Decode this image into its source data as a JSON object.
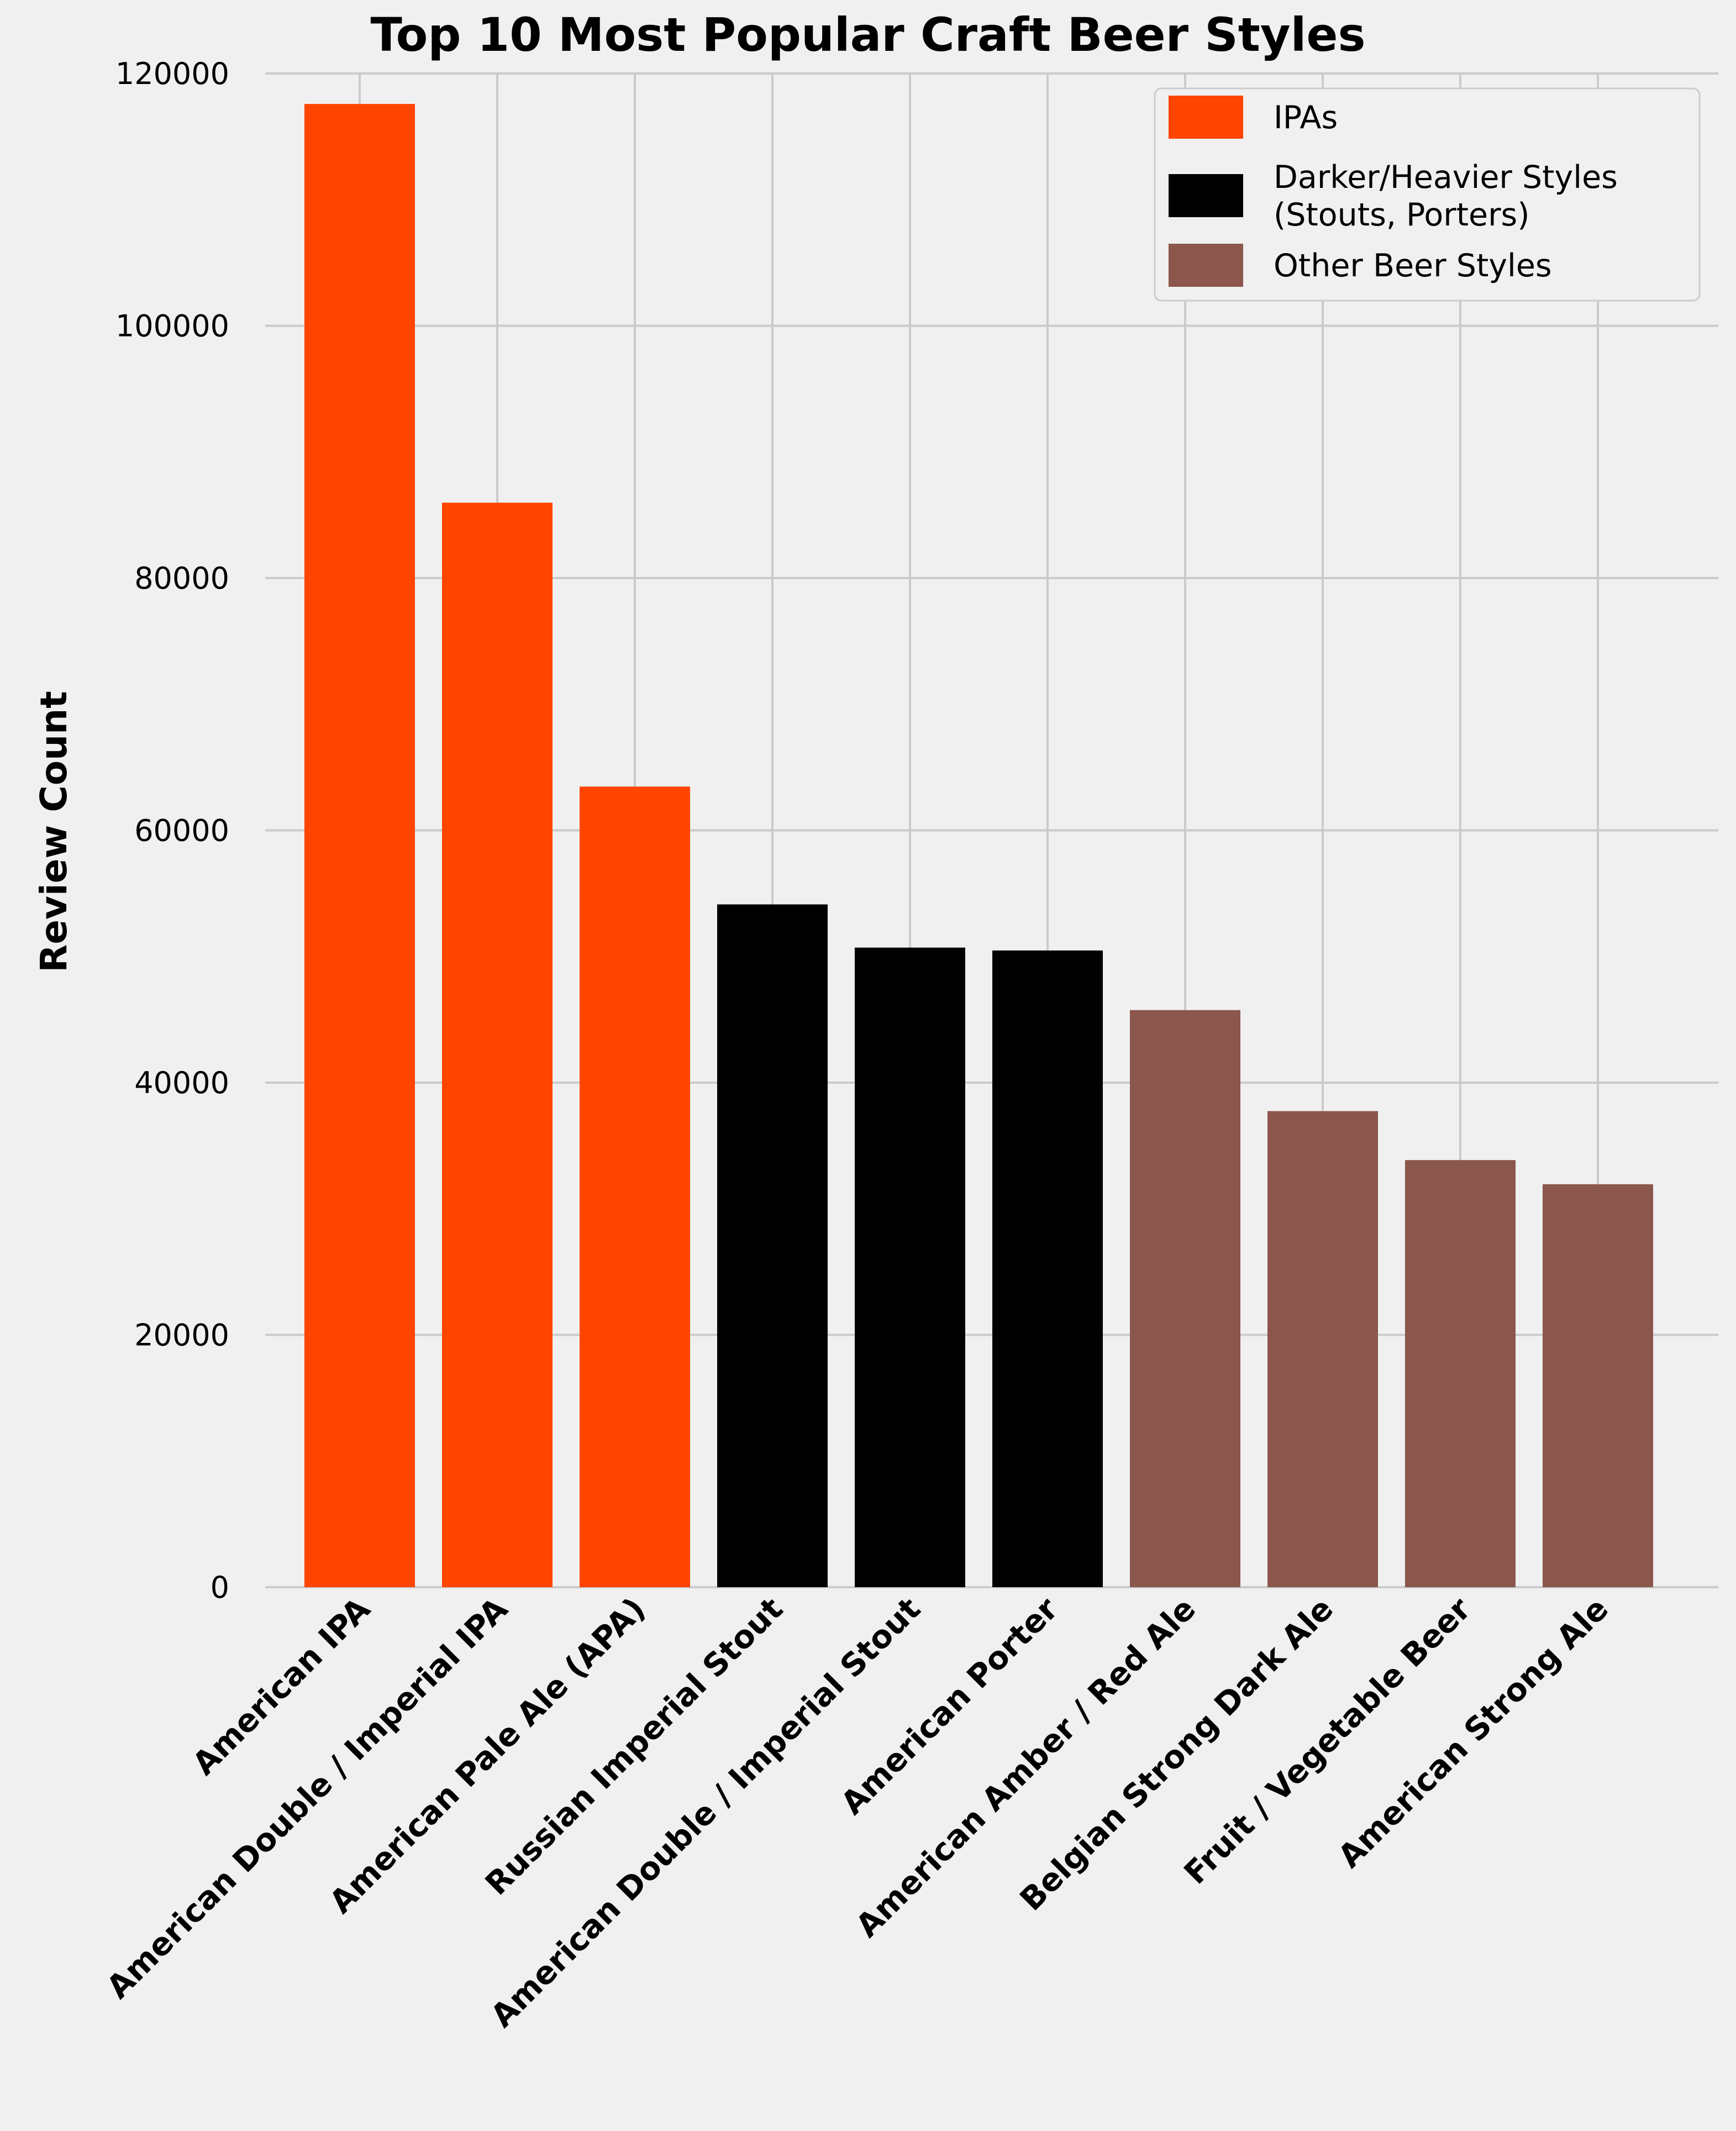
{
  "chart_data": {
    "type": "bar",
    "title": "Top 10 Most Popular Craft Beer Styles",
    "xlabel": "",
    "ylabel": "Review Count",
    "ylim": [
      0,
      120000
    ],
    "yticks": [
      "0",
      "20000",
      "40000",
      "60000",
      "80000",
      "100000",
      "120000"
    ],
    "grid": true,
    "legend_position": "top-right",
    "categories": [
      "American IPA",
      "American Double / Imperial IPA",
      "American Pale Ale (APA)",
      "Russian Imperial Stout",
      "American Double / Imperial Stout",
      "American Porter",
      "American Amber / Red Ale",
      "Belgian Strong Dark Ale",
      "Fruit / Vegetable Beer",
      "American Strong Ale"
    ],
    "values": [
      117586,
      85977,
      63469,
      54129,
      50705,
      50477,
      45751,
      37743,
      33861,
      31945
    ],
    "bar_groups": [
      0,
      0,
      0,
      1,
      1,
      1,
      2,
      2,
      2,
      2
    ],
    "legend": [
      {
        "lines": [
          "IPAs"
        ],
        "color": "#ff4500"
      },
      {
        "lines": [
          "Darker/Heavier Styles",
          " (Stouts, Porters)"
        ],
        "color": "#000000"
      },
      {
        "lines": [
          "Other Beer Styles"
        ],
        "color": "#8b564c"
      }
    ]
  }
}
